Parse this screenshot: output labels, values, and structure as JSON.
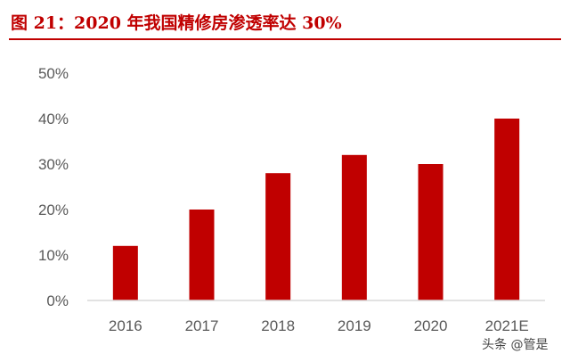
{
  "figure_title": "图 21：2020 年我国精修房渗透率达 30%",
  "watermark": "头条 @管是",
  "colors": {
    "bar": "#c00000",
    "title": "#c00000",
    "axis": "#d9d9d9",
    "tick_text": "#595959"
  },
  "chart_data": {
    "type": "bar",
    "title": "2020 年我国精修房渗透率达 30%",
    "xlabel": "",
    "ylabel": "",
    "categories": [
      "2016",
      "2017",
      "2018",
      "2019",
      "2020",
      "2021E"
    ],
    "values": [
      12,
      20,
      28,
      32,
      30,
      40
    ],
    "ylim": [
      0,
      50
    ],
    "yticks": [
      0,
      10,
      20,
      30,
      40,
      50
    ],
    "ytick_labels": [
      "0%",
      "10%",
      "20%",
      "30%",
      "40%",
      "50%"
    ],
    "grid": false,
    "legend": "none"
  }
}
